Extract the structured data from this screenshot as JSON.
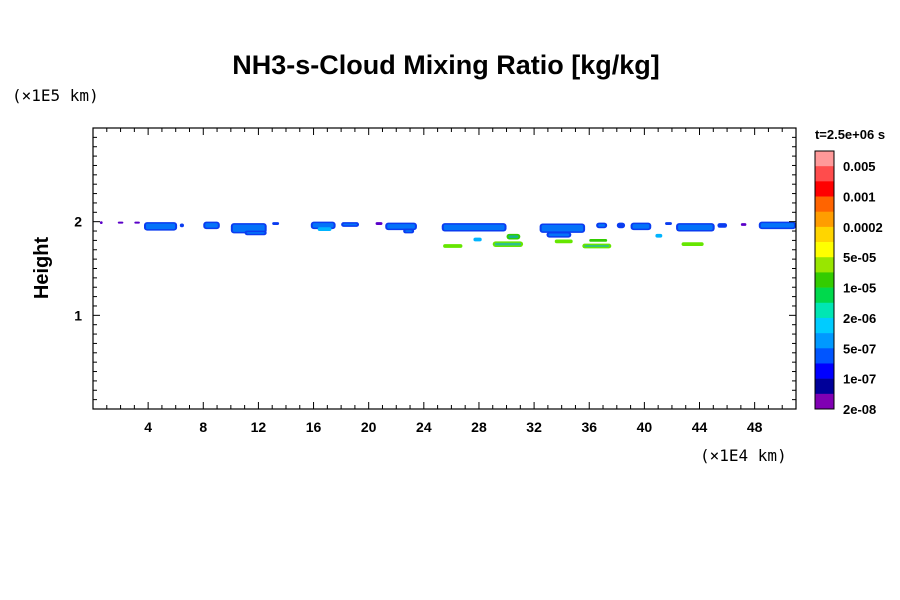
{
  "chart_data": {
    "type": "heatmap",
    "title": "NH3-s-Cloud Mixing Ratio [kg/kg]",
    "ylabel": "Height",
    "y_unit": "(×1E5 km)",
    "x_unit": "(×1E4 km)",
    "time_label": "t=2.5e+06 s",
    "xlim": [
      0,
      51
    ],
    "ylim": [
      0,
      3
    ],
    "x_ticks": [
      4,
      8,
      12,
      16,
      20,
      24,
      28,
      32,
      36,
      40,
      44,
      48
    ],
    "y_ticks": [
      1,
      2
    ],
    "colorbar": {
      "colors": [
        "#ff9999",
        "#ff4c4c",
        "#ff0000",
        "#ff6400",
        "#ff9d00",
        "#ffd500",
        "#ffff00",
        "#99e600",
        "#33cc00",
        "#00d94c",
        "#00e6b3",
        "#00ccff",
        "#0099ff",
        "#0055ff",
        "#0000ff",
        "#000099",
        "#8000b3"
      ],
      "labels": [
        "0.005",
        "0.001",
        "0.0002",
        "5e-05",
        "1e-05",
        "2e-06",
        "5e-07",
        "1e-07",
        "2e-08"
      ]
    },
    "cloud_patches": [
      {
        "x0": 0.5,
        "x1": 0.7,
        "y": 1.99,
        "h": 0.03,
        "level": "2e-08"
      },
      {
        "x0": 1.8,
        "x1": 2.2,
        "y": 1.99,
        "h": 0.02,
        "level": "2e-08"
      },
      {
        "x0": 3.0,
        "x1": 3.4,
        "y": 1.99,
        "h": 0.02,
        "level": "2e-08"
      },
      {
        "x0": 3.7,
        "x1": 6.1,
        "y": 1.95,
        "h": 0.09,
        "level": "1e-07"
      },
      {
        "x0": 6.3,
        "x1": 6.6,
        "y": 1.96,
        "h": 0.04,
        "level": "1e-07"
      },
      {
        "x0": 8.0,
        "x1": 9.2,
        "y": 1.96,
        "h": 0.08,
        "level": "1e-07"
      },
      {
        "x0": 10.0,
        "x1": 12.6,
        "y": 1.93,
        "h": 0.11,
        "level": "1e-07"
      },
      {
        "x0": 11.0,
        "x1": 12.6,
        "y": 1.88,
        "h": 0.05,
        "level": "1e-07"
      },
      {
        "x0": 13.0,
        "x1": 13.5,
        "y": 1.98,
        "h": 0.03,
        "level": "1e-07"
      },
      {
        "x0": 15.8,
        "x1": 17.6,
        "y": 1.96,
        "h": 0.08,
        "level": "1e-07"
      },
      {
        "x0": 16.3,
        "x1": 17.3,
        "y": 1.92,
        "h": 0.04,
        "level": "5e-07"
      },
      {
        "x0": 18.0,
        "x1": 19.3,
        "y": 1.97,
        "h": 0.05,
        "level": "1e-07"
      },
      {
        "x0": 20.5,
        "x1": 21.0,
        "y": 1.98,
        "h": 0.03,
        "level": "2e-08"
      },
      {
        "x0": 21.2,
        "x1": 23.5,
        "y": 1.95,
        "h": 0.08,
        "level": "1e-07"
      },
      {
        "x0": 22.5,
        "x1": 23.3,
        "y": 1.9,
        "h": 0.05,
        "level": "1e-07"
      },
      {
        "x0": 25.3,
        "x1": 30.0,
        "y": 1.94,
        "h": 0.09,
        "level": "1e-07"
      },
      {
        "x0": 25.4,
        "x1": 26.8,
        "y": 1.74,
        "h": 0.04,
        "level": "5e-05"
      },
      {
        "x0": 27.6,
        "x1": 28.2,
        "y": 1.81,
        "h": 0.04,
        "level": "5e-07"
      },
      {
        "x0": 29.0,
        "x1": 31.2,
        "y": 1.76,
        "h": 0.06,
        "level": "5e-05"
      },
      {
        "x0": 30.0,
        "x1": 31.0,
        "y": 1.84,
        "h": 0.06,
        "level": "1e-05"
      },
      {
        "x0": 32.4,
        "x1": 35.7,
        "y": 1.93,
        "h": 0.1,
        "level": "1e-07"
      },
      {
        "x0": 32.9,
        "x1": 34.7,
        "y": 1.86,
        "h": 0.06,
        "level": "1e-07"
      },
      {
        "x0": 33.5,
        "x1": 34.8,
        "y": 1.79,
        "h": 0.04,
        "level": "5e-05"
      },
      {
        "x0": 35.5,
        "x1": 37.6,
        "y": 1.74,
        "h": 0.05,
        "level": "5e-05"
      },
      {
        "x0": 36.0,
        "x1": 37.3,
        "y": 1.8,
        "h": 0.03,
        "level": "1e-05"
      },
      {
        "x0": 36.5,
        "x1": 37.3,
        "y": 1.96,
        "h": 0.06,
        "level": "1e-07"
      },
      {
        "x0": 38.0,
        "x1": 38.6,
        "y": 1.96,
        "h": 0.06,
        "level": "1e-07"
      },
      {
        "x0": 39.0,
        "x1": 40.5,
        "y": 1.95,
        "h": 0.08,
        "level": "1e-07"
      },
      {
        "x0": 40.8,
        "x1": 41.3,
        "y": 1.85,
        "h": 0.04,
        "level": "5e-07"
      },
      {
        "x0": 41.5,
        "x1": 42.0,
        "y": 1.98,
        "h": 0.03,
        "level": "1e-07"
      },
      {
        "x0": 42.3,
        "x1": 45.1,
        "y": 1.94,
        "h": 0.09,
        "level": "1e-07"
      },
      {
        "x0": 42.7,
        "x1": 44.3,
        "y": 1.76,
        "h": 0.04,
        "level": "5e-05"
      },
      {
        "x0": 45.3,
        "x1": 46.0,
        "y": 1.96,
        "h": 0.05,
        "level": "1e-07"
      },
      {
        "x0": 47.0,
        "x1": 47.4,
        "y": 1.97,
        "h": 0.03,
        "level": "2e-08"
      },
      {
        "x0": 48.3,
        "x1": 51.0,
        "y": 1.96,
        "h": 0.08,
        "level": "1e-07"
      }
    ]
  }
}
